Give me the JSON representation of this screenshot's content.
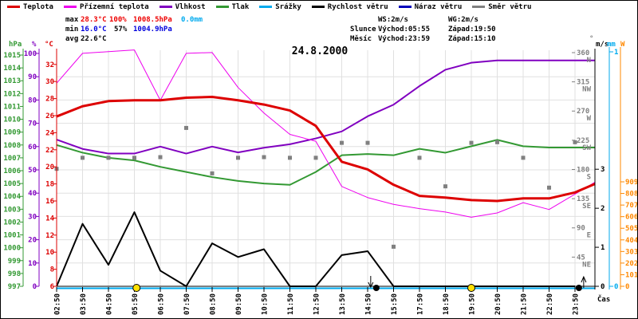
{
  "legend": {
    "items": [
      {
        "label": "Teplota",
        "color": "#dd0000"
      },
      {
        "label": "Přízemní teplota",
        "color": "#ee00ee"
      },
      {
        "label": "Vlhkost",
        "color": "#8000c0"
      },
      {
        "label": "Tlak",
        "color": "#339933"
      },
      {
        "label": "Srážky",
        "color": "#00aaee"
      },
      {
        "label": "Rychlost větru",
        "color": "#000000"
      },
      {
        "label": "Náraz větru",
        "color": "#0000bb"
      },
      {
        "label": "Směr větru",
        "color": "#808080"
      }
    ]
  },
  "stats": {
    "max": {
      "label": "max",
      "temp": "28.3°C",
      "humidity": "100%",
      "pressure": "1008.5hPa",
      "rain": "0.0mm"
    },
    "min": {
      "label": "min",
      "temp": "16.0°C",
      "humidity": "57%",
      "pressure": "1004.9hPa"
    },
    "avg": {
      "label": "avg",
      "temp": "22.6°C"
    },
    "wind": {
      "ws": "WS:2m/s",
      "wg": "WG:2m/s"
    },
    "sun": {
      "label": "Slunce",
      "rise": "Východ:05:55",
      "set": "Západ:19:50"
    },
    "moon": {
      "label": "Měsíc",
      "rise": "Východ:23:59",
      "set": "Západ:15:10"
    }
  },
  "chart_data": {
    "type": "line",
    "title": "24.8.2000",
    "x_label": "Čas",
    "x_categories": [
      "02:50",
      "03:50",
      "04:50",
      "05:50",
      "06:50",
      "07:50",
      "08:50",
      "09:50",
      "10:50",
      "11:50",
      "12:50",
      "13:50",
      "14:50",
      "15:50",
      "17:50",
      "18:50",
      "19:50",
      "20:50",
      "21:50",
      "22:50",
      "23:50"
    ],
    "series": [
      {
        "name": "Teplota",
        "unit": "°C",
        "color": "#dd0000",
        "width": 3,
        "values": [
          25.9,
          27.1,
          27.7,
          27.8,
          27.8,
          28.1,
          28.2,
          27.8,
          27.3,
          26.6,
          24.8,
          20.6,
          19.7,
          17.9,
          16.6,
          16.4,
          16.1,
          16.0,
          16.3,
          16.3,
          17.0
        ],
        "end_value": 18.0
      },
      {
        "name": "Přízemní teplota",
        "unit": "°C",
        "color": "#ee00ee",
        "width": 1,
        "values": [
          29.8,
          33.3,
          33.5,
          33.7,
          27.8,
          33.3,
          33.4,
          29.3,
          26.3,
          23.8,
          23.0,
          17.7,
          16.4,
          15.6,
          15.1,
          14.7,
          14.1,
          14.6,
          15.8,
          15.0,
          16.8
        ],
        "end_value": 18.2
      },
      {
        "name": "Vlhkost",
        "unit": "%",
        "color": "#8000c0",
        "width": 2,
        "values": [
          63,
          59,
          57,
          57,
          60,
          57,
          60,
          57.5,
          59.5,
          61,
          63.5,
          66.5,
          73,
          78,
          86,
          93,
          96,
          97,
          97,
          97,
          97
        ],
        "end_value": 97
      },
      {
        "name": "Tlak",
        "unit": "hPa",
        "color": "#339933",
        "width": 2,
        "values": [
          1008.0,
          1007.4,
          1007.0,
          1006.8,
          1006.3,
          1005.9,
          1005.5,
          1005.2,
          1005.0,
          1004.9,
          1005.9,
          1007.2,
          1007.3,
          1007.2,
          1007.7,
          1007.4,
          1007.9,
          1008.4,
          1007.9,
          1007.8,
          1007.8
        ],
        "end_value": 1007.8
      },
      {
        "name": "Srážky",
        "unit": "mm",
        "color": "#00aaee",
        "width": 2,
        "values": [
          0,
          0,
          0,
          0,
          0,
          0,
          0,
          0,
          0,
          0,
          0,
          0,
          0,
          0,
          0,
          0,
          0,
          0,
          0,
          0,
          0
        ],
        "end_value": 0
      },
      {
        "name": "Rychlost větru",
        "unit": "m/s",
        "color": "#000000",
        "width": 2,
        "values": [
          0,
          1.6,
          0.55,
          1.9,
          0.4,
          0,
          1.1,
          0.75,
          0.95,
          0,
          0,
          0.8,
          0.9,
          0,
          0,
          0,
          0,
          0,
          0,
          0,
          0
        ]
      },
      {
        "name": "Směr větru",
        "unit": "°",
        "color": "#808080",
        "style": "squares",
        "values": [
          181,
          198,
          198,
          198,
          199,
          244,
          174,
          198,
          199,
          198,
          198,
          221,
          221,
          61,
          198,
          154,
          221,
          222,
          198,
          152,
          222
        ]
      }
    ],
    "axes": {
      "pressure": {
        "unit": "hPa",
        "color": "#339933",
        "min": 997,
        "max": 1015,
        "ticks": [
          1015,
          1014,
          1013,
          1012,
          1011,
          1010,
          1009,
          1008,
          1007,
          1006,
          1005,
          1004,
          1003,
          1002,
          1001,
          1000,
          999,
          998,
          997
        ]
      },
      "humidity": {
        "unit": "%",
        "color": "#8000c0",
        "min": 0,
        "max": 100,
        "ticks": [
          100,
          90,
          80,
          70,
          60,
          50,
          40,
          30,
          20,
          10,
          0
        ]
      },
      "temperature": {
        "unit": "°C",
        "color": "#dd0000",
        "min": 6,
        "max": 32,
        "ticks": [
          32,
          30,
          28,
          26,
          24,
          22,
          20,
          18,
          16,
          14,
          12,
          10,
          8,
          6
        ]
      },
      "direction": {
        "unit": "°",
        "color": "#808080",
        "min": 0,
        "max": 360,
        "ticks": [
          {
            "v": 360,
            "c": "N"
          },
          {
            "v": 315,
            "c": "NW"
          },
          {
            "v": 270,
            "c": "W"
          },
          {
            "v": 225,
            "c": "SW"
          },
          {
            "v": 180,
            "c": "S"
          },
          {
            "v": 135,
            "c": "SE"
          },
          {
            "v": 90,
            "c": "E"
          },
          {
            "v": 45,
            "c": "NE"
          }
        ]
      },
      "wind": {
        "unit": "m/s",
        "color": "#000000",
        "ticks": [
          3,
          2,
          1,
          0
        ]
      },
      "rain": {
        "unit": "mm",
        "color": "#00aaee",
        "ticks": [
          1,
          0
        ]
      },
      "radiation": {
        "unit": "W",
        "color": "#ff8800",
        "ticks": [
          909,
          808,
          707,
          606,
          505,
          404,
          303,
          202,
          101,
          0
        ]
      }
    },
    "markers": {
      "sunrise": "05:55",
      "sunset": "19:50",
      "moonset": "15:10",
      "moonrise": "23:59"
    }
  }
}
